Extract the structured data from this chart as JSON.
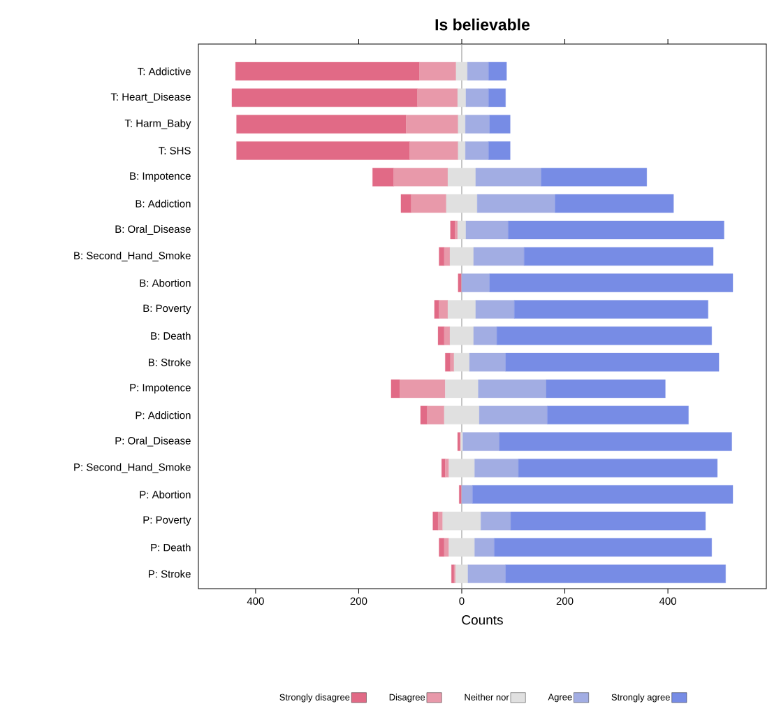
{
  "chart_data": {
    "type": "bar",
    "orientation": "horizontal",
    "title": "Is believable",
    "xlabel": "Counts",
    "categories": [
      "T: Addictive",
      "T: Heart_Disease",
      "T: Harm_Baby",
      "T: SHS",
      "B: Impotence",
      "B: Addiction",
      "B: Oral_Disease",
      "B: Second_Hand_Smoke",
      "B: Abortion",
      "B: Poverty",
      "B: Death",
      "B: Stroke",
      "P: Impotence",
      "P: Addiction",
      "P: Oral_Disease",
      "P: Second_Hand_Smoke",
      "P: Abortion",
      "P: Poverty",
      "P: Death",
      "P: Stroke"
    ],
    "series": [
      {
        "name": "Strongly disagree",
        "color": "#e16a86",
        "values": [
          357,
          360,
          329,
          336,
          41,
          20,
          9,
          10,
          6,
          9,
          12,
          10,
          17,
          13,
          5,
          7,
          4,
          10,
          10,
          5
        ],
        "base": [
          -439,
          -446,
          -437,
          -437,
          -173,
          -118,
          -22,
          -44,
          -7,
          -53,
          -46,
          -32,
          -137,
          -80,
          -8,
          -39,
          -5,
          -56,
          -44,
          -20
        ]
      },
      {
        "name": "Disagree",
        "color": "#e899aa",
        "values": [
          71,
          78,
          101,
          94,
          105,
          68,
          5,
          11,
          null,
          17,
          11,
          7,
          88,
          33,
          1,
          7,
          null,
          9,
          9,
          3
        ],
        "base": [
          -82,
          -86,
          -108,
          -101,
          -132,
          -98,
          -13,
          -34,
          null,
          -44,
          -34,
          -22,
          -120,
          -67,
          -3,
          -32,
          null,
          -46,
          -34,
          -15
        ]
      },
      {
        "name": "Neither nor",
        "color": "#e0e0e0",
        "values": [
          22,
          16,
          14,
          14,
          54,
          60,
          16,
          46,
          null,
          54,
          46,
          30,
          64,
          68,
          4,
          50,
          null,
          74,
          50,
          24
        ],
        "base": [
          -11,
          -8,
          -7,
          -7,
          -27,
          -30,
          -8,
          -23,
          null,
          -27,
          -23,
          -15,
          -32,
          -34,
          -2,
          -25,
          null,
          -37,
          -25,
          -12
        ]
      },
      {
        "name": "Agree",
        "color": "#a2ade3",
        "values": [
          41,
          44,
          47,
          45,
          127,
          151,
          82,
          98,
          54,
          75,
          45,
          70,
          132,
          132,
          71,
          85,
          21,
          58,
          38,
          73
        ],
        "base": [
          11,
          8,
          7,
          7,
          27,
          30,
          8,
          23,
          0,
          27,
          23,
          15,
          32,
          34,
          2,
          25,
          0,
          37,
          25,
          12
        ]
      },
      {
        "name": "Strongly agree",
        "color": "#778ce5",
        "values": [
          35,
          33,
          40,
          42,
          205,
          230,
          419,
          367,
          472,
          376,
          417,
          414,
          231,
          274,
          451,
          386,
          505,
          378,
          422,
          427
        ],
        "base": [
          52,
          52,
          54,
          52,
          154,
          181,
          90,
          121,
          54,
          102,
          68,
          85,
          164,
          166,
          73,
          110,
          21,
          95,
          63,
          85
        ]
      }
    ],
    "xlim": [
      -511,
      591
    ],
    "xticks": [
      {
        "value": -400,
        "label": "400"
      },
      {
        "value": -200,
        "label": "200"
      },
      0,
      200,
      400
    ],
    "ref_lines": [
      {
        "axis": "x",
        "value": 0,
        "color": "#a0a0a0"
      }
    ],
    "legend": "bottom",
    "grid": false
  }
}
